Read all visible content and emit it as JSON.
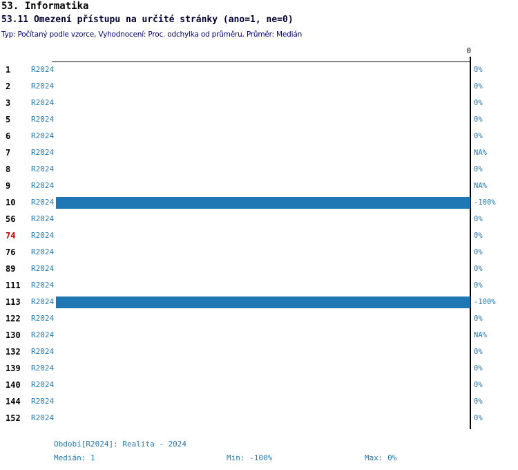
{
  "header": {
    "title": "53. Informatika",
    "subtitle": "53.11 Omezení přístupu na určité stránky (ano=1, ne=0)",
    "meta": "Typ: Počítaný podle vzorce, Vyhodnocení: Proc. odchylka od průměru, Průměr: Medián"
  },
  "chart_data": {
    "type": "bar",
    "orientation": "horizontal",
    "series_label": "R2024",
    "axis": {
      "top_tick_label": "0",
      "min": -100,
      "max": 0,
      "unit": "%"
    },
    "bar_color": "#1F77B4",
    "rows": [
      {
        "id": "1",
        "value": 0,
        "display": "0%"
      },
      {
        "id": "2",
        "value": 0,
        "display": "0%"
      },
      {
        "id": "3",
        "value": 0,
        "display": "0%"
      },
      {
        "id": "5",
        "value": 0,
        "display": "0%"
      },
      {
        "id": "6",
        "value": 0,
        "display": "0%"
      },
      {
        "id": "7",
        "value": null,
        "display": "NA%"
      },
      {
        "id": "8",
        "value": 0,
        "display": "0%"
      },
      {
        "id": "9",
        "value": null,
        "display": "NA%"
      },
      {
        "id": "10",
        "value": -100,
        "display": "-100%"
      },
      {
        "id": "56",
        "value": 0,
        "display": "0%"
      },
      {
        "id": "74",
        "value": 0,
        "display": "0%",
        "highlight": true
      },
      {
        "id": "76",
        "value": 0,
        "display": "0%"
      },
      {
        "id": "89",
        "value": 0,
        "display": "0%"
      },
      {
        "id": "111",
        "value": 0,
        "display": "0%"
      },
      {
        "id": "113",
        "value": -100,
        "display": "-100%"
      },
      {
        "id": "122",
        "value": 0,
        "display": "0%"
      },
      {
        "id": "130",
        "value": null,
        "display": "NA%"
      },
      {
        "id": "132",
        "value": 0,
        "display": "0%"
      },
      {
        "id": "139",
        "value": 0,
        "display": "0%"
      },
      {
        "id": "140",
        "value": 0,
        "display": "0%"
      },
      {
        "id": "144",
        "value": 0,
        "display": "0%"
      },
      {
        "id": "152",
        "value": 0,
        "display": "0%"
      }
    ]
  },
  "footer": {
    "period": "Období[R2024]: Realita - 2024",
    "median": "Medián: 1",
    "min": "Min: -100%",
    "max": "Max: 0%"
  },
  "colors": {
    "accent_blue": "#1F77B4",
    "highlight_red": "#CC0000",
    "meta_navy": "#000080",
    "axis_black": "#000000"
  }
}
